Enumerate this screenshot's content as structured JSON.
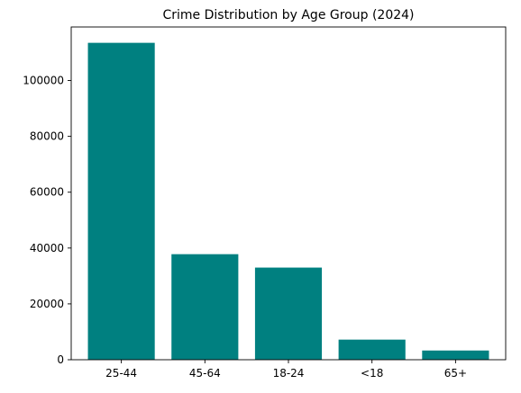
{
  "chart_data": {
    "type": "bar",
    "title": "Crime Distribution by Age Group (2024)",
    "xlabel": "",
    "ylabel": "",
    "categories": [
      "25-44",
      "45-64",
      "18-24",
      "<18",
      "65+"
    ],
    "values": [
      113500,
      37800,
      33000,
      7200,
      3300
    ],
    "ylim": [
      0,
      119175
    ],
    "yticks": [
      0,
      20000,
      40000,
      60000,
      80000,
      100000
    ],
    "bar_color": "#008080",
    "grid": false,
    "legend": "none"
  }
}
